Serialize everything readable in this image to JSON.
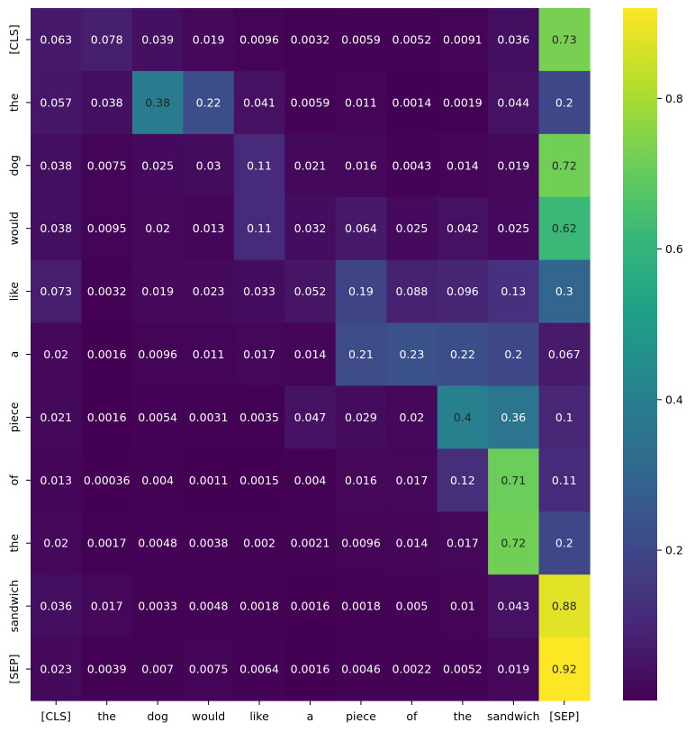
{
  "chart_data": {
    "type": "heatmap",
    "title": "",
    "xlabel": "",
    "ylabel": "",
    "x_labels": [
      "[CLS]",
      "the",
      "dog",
      "would",
      "like",
      "a",
      "piece",
      "of",
      "the",
      "sandwich",
      "[SEP]"
    ],
    "y_labels": [
      "[CLS]",
      "the",
      "dog",
      "would",
      "like",
      "a",
      "piece",
      "of",
      "the",
      "sandwich",
      "[SEP]"
    ],
    "values": [
      [
        "0.063",
        "0.078",
        "0.039",
        "0.019",
        "0.0096",
        "0.0032",
        "0.0059",
        "0.0052",
        "0.0091",
        "0.036",
        "0.73"
      ],
      [
        "0.057",
        "0.038",
        "0.38",
        "0.22",
        "0.041",
        "0.0059",
        "0.011",
        "0.0014",
        "0.0019",
        "0.044",
        "0.2"
      ],
      [
        "0.038",
        "0.0075",
        "0.025",
        "0.03",
        "0.11",
        "0.021",
        "0.016",
        "0.0043",
        "0.014",
        "0.019",
        "0.72"
      ],
      [
        "0.038",
        "0.0095",
        "0.02",
        "0.013",
        "0.11",
        "0.032",
        "0.064",
        "0.025",
        "0.042",
        "0.025",
        "0.62"
      ],
      [
        "0.073",
        "0.0032",
        "0.019",
        "0.023",
        "0.033",
        "0.052",
        "0.19",
        "0.088",
        "0.096",
        "0.13",
        "0.3"
      ],
      [
        "0.02",
        "0.0016",
        "0.0096",
        "0.011",
        "0.017",
        "0.014",
        "0.21",
        "0.23",
        "0.22",
        "0.2",
        "0.067"
      ],
      [
        "0.021",
        "0.0016",
        "0.0054",
        "0.0031",
        "0.0035",
        "0.047",
        "0.029",
        "0.02",
        "0.4",
        "0.36",
        "0.1"
      ],
      [
        "0.013",
        "0.00036",
        "0.004",
        "0.0011",
        "0.0015",
        "0.004",
        "0.016",
        "0.017",
        "0.12",
        "0.71",
        "0.11"
      ],
      [
        "0.02",
        "0.0017",
        "0.0048",
        "0.0038",
        "0.002",
        "0.0021",
        "0.0096",
        "0.014",
        "0.017",
        "0.72",
        "0.2"
      ],
      [
        "0.036",
        "0.017",
        "0.0033",
        "0.0048",
        "0.0018",
        "0.0016",
        "0.0018",
        "0.005",
        "0.01",
        "0.043",
        "0.88"
      ],
      [
        "0.023",
        "0.0039",
        "0.007",
        "0.0075",
        "0.0064",
        "0.0016",
        "0.0046",
        "0.0022",
        "0.0052",
        "0.019",
        "0.92"
      ]
    ],
    "colormap": "viridis",
    "vmin": 0.00036,
    "vmax": 0.92,
    "colorbar_ticks": [
      "0.2",
      "0.4",
      "0.6",
      "0.8"
    ],
    "annotations": true,
    "grid": false
  }
}
